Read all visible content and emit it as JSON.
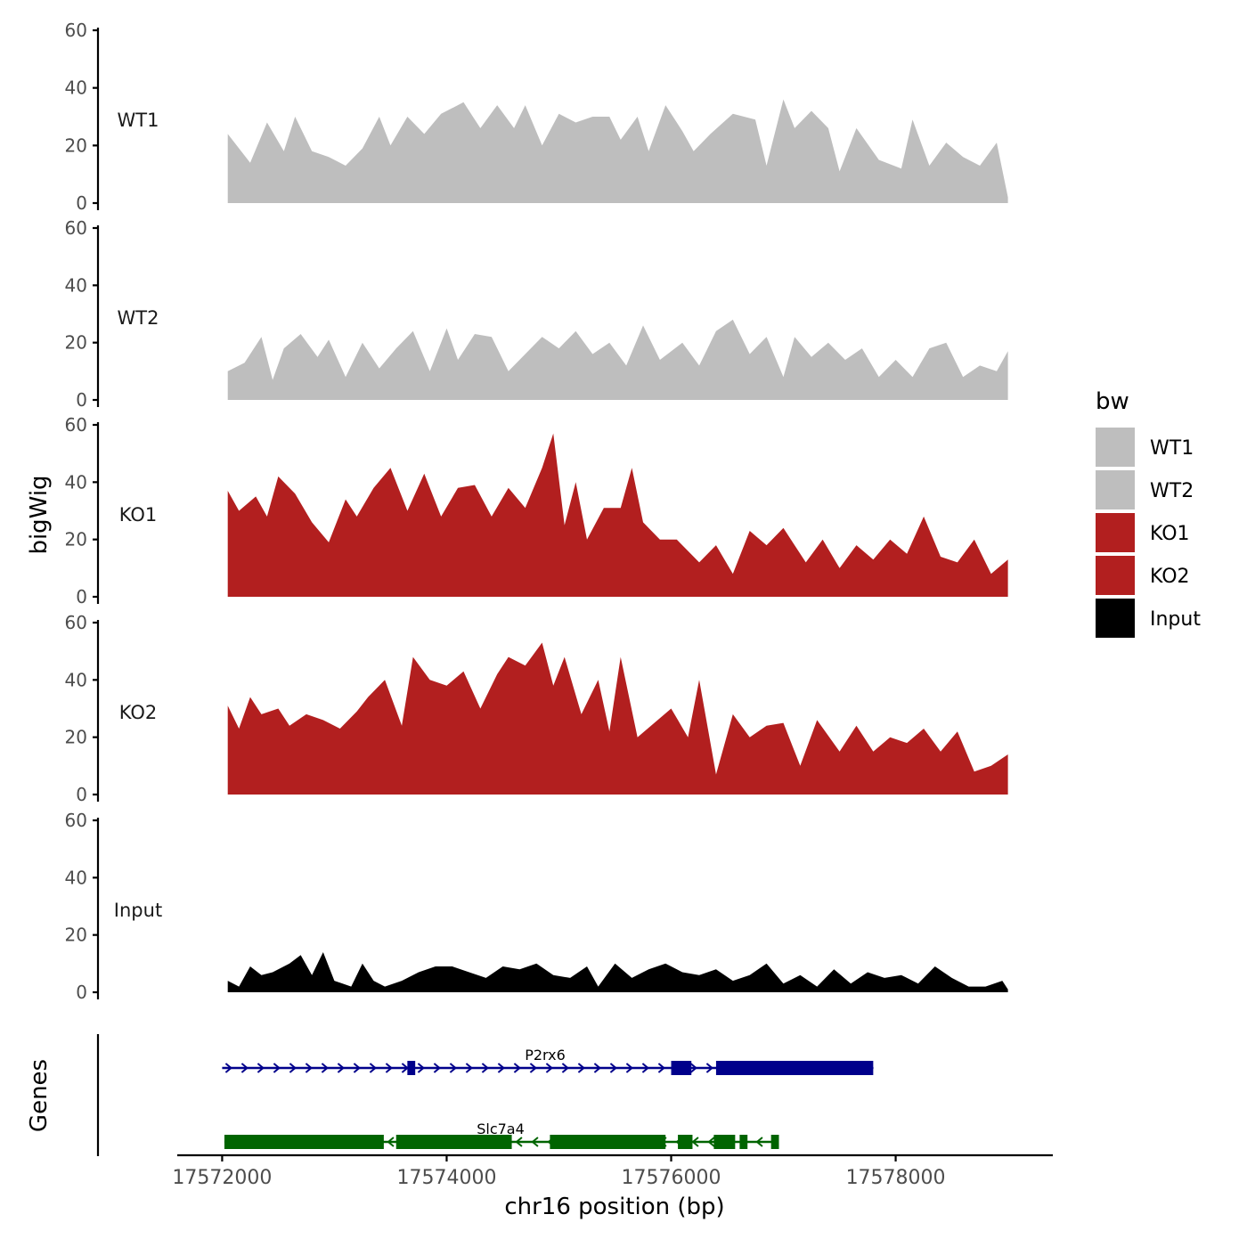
{
  "chart_data": {
    "type": "area",
    "xlabel": "chr16 position (bp)",
    "ylabel": "bigWig",
    "xlim": [
      17571600,
      17579400
    ],
    "x_ticks": [
      17572000,
      17574000,
      17576000,
      17578000
    ],
    "x_tick_labels": [
      "17572000",
      "17574000",
      "17576000",
      "17578000"
    ],
    "ylim": [
      0,
      60
    ],
    "y_ticks": [
      0,
      20,
      40,
      60
    ],
    "y_tick_labels": [
      "0",
      "20",
      "40",
      "60"
    ],
    "legend": {
      "title": "bw",
      "position": "right",
      "entries": [
        {
          "label": "WT1",
          "color": "#bebebe"
        },
        {
          "label": "WT2",
          "color": "#bebebe"
        },
        {
          "label": "KO1",
          "color": "#b21f1f"
        },
        {
          "label": "KO2",
          "color": "#b21f1f"
        },
        {
          "label": "Input",
          "color": "#000000"
        }
      ]
    },
    "series": [
      {
        "name": "WT1",
        "color": "#bebebe",
        "x": [
          17572050,
          17572250,
          17572400,
          17572550,
          17572650,
          17572800,
          17572950,
          17573100,
          17573250,
          17573400,
          17573500,
          17573650,
          17573800,
          17573950,
          17574150,
          17574300,
          17574450,
          17574600,
          17574700,
          17574850,
          17575000,
          17575150,
          17575300,
          17575450,
          17575550,
          17575700,
          17575800,
          17575950,
          17576100,
          17576200,
          17576350,
          17576550,
          17576750,
          17576850,
          17577000,
          17577100,
          17577250,
          17577400,
          17577500,
          17577650,
          17577850,
          17578050,
          17578150,
          17578300,
          17578450,
          17578600,
          17578750,
          17578900,
          17579000
        ],
        "values": [
          24,
          14,
          28,
          18,
          30,
          18,
          16,
          13,
          19,
          30,
          20,
          30,
          24,
          31,
          35,
          26,
          34,
          26,
          34,
          20,
          31,
          28,
          30,
          30,
          22,
          30,
          18,
          34,
          25,
          18,
          24,
          31,
          29,
          13,
          36,
          26,
          32,
          26,
          11,
          26,
          15,
          12,
          29,
          13,
          21,
          16,
          13,
          21,
          2
        ]
      },
      {
        "name": "WT2",
        "color": "#bebebe",
        "x": [
          17572050,
          17572200,
          17572350,
          17572450,
          17572550,
          17572700,
          17572850,
          17572950,
          17573100,
          17573250,
          17573400,
          17573550,
          17573700,
          17573850,
          17574000,
          17574100,
          17574250,
          17574400,
          17574550,
          17574700,
          17574850,
          17575000,
          17575150,
          17575300,
          17575450,
          17575600,
          17575750,
          17575900,
          17576100,
          17576250,
          17576400,
          17576550,
          17576700,
          17576850,
          17577000,
          17577100,
          17577250,
          17577400,
          17577550,
          17577700,
          17577850,
          17578000,
          17578150,
          17578300,
          17578450,
          17578600,
          17578750,
          17578900,
          17579000
        ],
        "values": [
          10,
          13,
          22,
          7,
          18,
          23,
          15,
          21,
          8,
          20,
          11,
          18,
          24,
          10,
          25,
          14,
          23,
          22,
          10,
          16,
          22,
          18,
          24,
          16,
          20,
          12,
          26,
          14,
          20,
          12,
          24,
          28,
          16,
          22,
          8,
          22,
          15,
          20,
          14,
          18,
          8,
          14,
          8,
          18,
          20,
          8,
          12,
          10,
          17
        ]
      },
      {
        "name": "KO1",
        "color": "#b21f1f",
        "x": [
          17572050,
          17572150,
          17572300,
          17572400,
          17572500,
          17572650,
          17572800,
          17572950,
          17573100,
          17573200,
          17573350,
          17573500,
          17573650,
          17573800,
          17573950,
          17574100,
          17574250,
          17574400,
          17574550,
          17574700,
          17574850,
          17574950,
          17575050,
          17575150,
          17575250,
          17575400,
          17575550,
          17575650,
          17575750,
          17575900,
          17576050,
          17576250,
          17576400,
          17576550,
          17576700,
          17576850,
          17577000,
          17577200,
          17577350,
          17577500,
          17577650,
          17577800,
          17577950,
          17578100,
          17578250,
          17578400,
          17578550,
          17578700,
          17578850,
          17579000
        ],
        "values": [
          37,
          30,
          35,
          28,
          42,
          36,
          26,
          19,
          34,
          28,
          38,
          45,
          30,
          43,
          28,
          38,
          39,
          28,
          38,
          31,
          45,
          57,
          25,
          40,
          20,
          31,
          31,
          45,
          26,
          20,
          20,
          12,
          18,
          8,
          23,
          18,
          24,
          12,
          20,
          10,
          18,
          13,
          20,
          15,
          28,
          14,
          12,
          20,
          8,
          13
        ]
      },
      {
        "name": "KO2",
        "color": "#b21f1f",
        "x": [
          17572050,
          17572150,
          17572250,
          17572350,
          17572500,
          17572600,
          17572750,
          17572900,
          17573050,
          17573200,
          17573300,
          17573450,
          17573600,
          17573700,
          17573850,
          17574000,
          17574150,
          17574300,
          17574450,
          17574550,
          17574700,
          17574850,
          17574950,
          17575050,
          17575200,
          17575350,
          17575450,
          17575550,
          17575700,
          17575850,
          17576000,
          17576150,
          17576250,
          17576400,
          17576550,
          17576700,
          17576850,
          17577000,
          17577150,
          17577300,
          17577500,
          17577650,
          17577800,
          17577950,
          17578100,
          17578250,
          17578400,
          17578550,
          17578700,
          17578850,
          17579000
        ],
        "values": [
          31,
          23,
          34,
          28,
          30,
          24,
          28,
          26,
          23,
          29,
          34,
          40,
          24,
          48,
          40,
          38,
          43,
          30,
          42,
          48,
          45,
          53,
          38,
          48,
          28,
          40,
          22,
          48,
          20,
          25,
          30,
          20,
          40,
          7,
          28,
          20,
          24,
          25,
          10,
          26,
          15,
          24,
          15,
          20,
          18,
          23,
          15,
          22,
          8,
          10,
          14
        ]
      },
      {
        "name": "Input",
        "color": "#000000",
        "x": [
          17572050,
          17572150,
          17572250,
          17572350,
          17572450,
          17572600,
          17572700,
          17572800,
          17572900,
          17573000,
          17573150,
          17573250,
          17573350,
          17573450,
          17573600,
          17573750,
          17573900,
          17574050,
          17574200,
          17574350,
          17574500,
          17574650,
          17574800,
          17574950,
          17575100,
          17575250,
          17575350,
          17575500,
          17575650,
          17575800,
          17575950,
          17576100,
          17576250,
          17576400,
          17576550,
          17576700,
          17576850,
          17577000,
          17577150,
          17577300,
          17577450,
          17577600,
          17577750,
          17577900,
          17578050,
          17578200,
          17578350,
          17578500,
          17578650,
          17578800,
          17578950,
          17579000
        ],
        "values": [
          4,
          2,
          9,
          6,
          7,
          10,
          13,
          6,
          14,
          4,
          2,
          10,
          4,
          2,
          4,
          7,
          9,
          9,
          7,
          5,
          9,
          8,
          10,
          6,
          5,
          9,
          2,
          10,
          5,
          8,
          10,
          7,
          6,
          8,
          4,
          6,
          10,
          3,
          6,
          2,
          8,
          3,
          7,
          5,
          6,
          3,
          9,
          5,
          2,
          2,
          4,
          1
        ]
      }
    ],
    "genes": {
      "track_label": "Genes",
      "items": [
        {
          "name": "P2rx6",
          "strand": "+",
          "start": 17572000,
          "end": 17577800,
          "color": "#00008b",
          "exons": [
            [
              17573650,
              17573720
            ],
            [
              17576000,
              17576180
            ],
            [
              17576400,
              17577800
            ]
          ]
        },
        {
          "name": "Slc7a4",
          "strand": "-",
          "start": 17572020,
          "end": 17576960,
          "color": "#006400",
          "exons": [
            [
              17572020,
              17573440
            ],
            [
              17573550,
              17574580
            ],
            [
              17574920,
              17575950
            ],
            [
              17576060,
              17576190
            ],
            [
              17576380,
              17576570
            ],
            [
              17576610,
              17576680
            ],
            [
              17576890,
              17576960
            ]
          ]
        }
      ]
    }
  }
}
